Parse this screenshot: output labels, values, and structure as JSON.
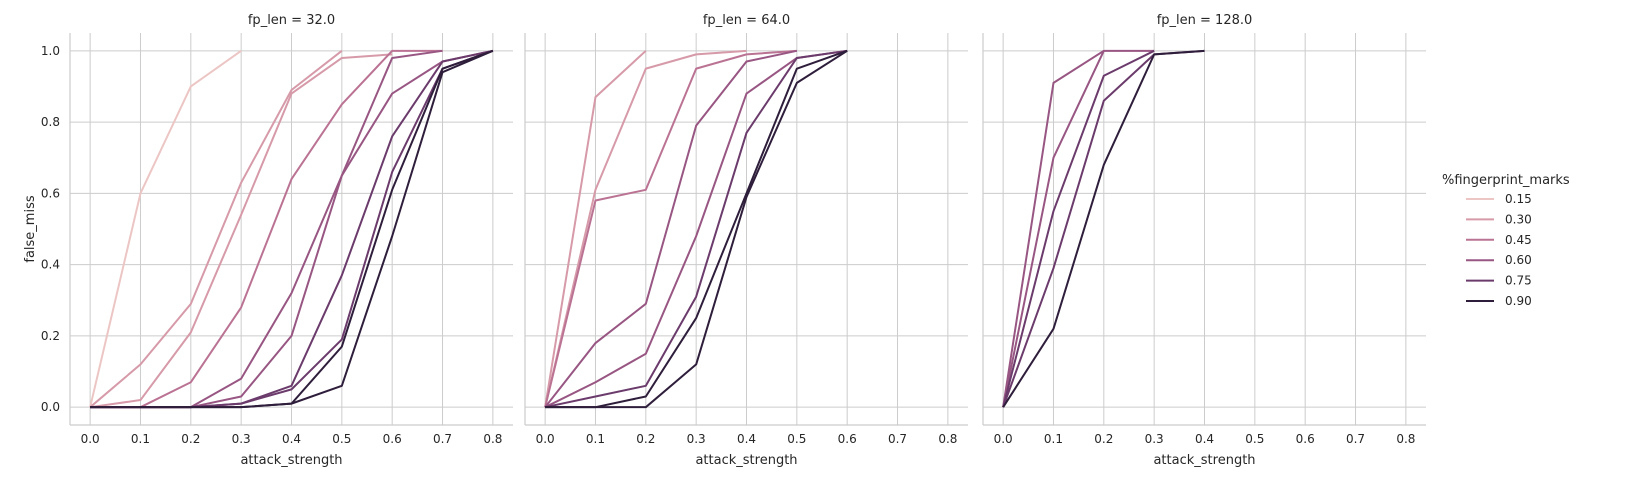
{
  "chart_data": {
    "type": "line",
    "xlabel": "attack_strength",
    "ylabel": "false_miss",
    "xlim": [
      -0.04,
      0.84
    ],
    "ylim": [
      -0.05,
      1.05
    ],
    "xticks": [
      "0.0",
      "0.1",
      "0.2",
      "0.3",
      "0.4",
      "0.5",
      "0.6",
      "0.7",
      "0.8"
    ],
    "yticks": [
      "0.0",
      "0.2",
      "0.4",
      "0.6",
      "0.8",
      "1.0"
    ],
    "grid": true,
    "legend": {
      "title": "%fingerprint_marks",
      "placement": "right",
      "entries": [
        {
          "label": "0.15",
          "color": "#ecc6c4"
        },
        {
          "label": "0.30",
          "color": "#d69aa9"
        },
        {
          "label": "0.45",
          "color": "#bb7394"
        },
        {
          "label": "0.60",
          "color": "#985683"
        },
        {
          "label": "0.75",
          "color": "#6b3b6c"
        },
        {
          "label": "0.90",
          "color": "#2e1e3b"
        }
      ]
    },
    "panels": [
      {
        "title": "fp_len = 32.0",
        "series": [
          {
            "name": "0.15",
            "x": [
              0.0,
              0.1,
              0.2,
              0.3
            ],
            "y": [
              0.0,
              0.6,
              0.9,
              1.0
            ]
          },
          {
            "name": "0.30",
            "x": [
              0.0,
              0.1,
              0.2,
              0.3,
              0.4,
              0.5
            ],
            "y": [
              0.0,
              0.12,
              0.29,
              0.63,
              0.89,
              1.0
            ]
          },
          {
            "name": "0.30",
            "x": [
              0.0,
              0.1,
              0.2,
              0.3,
              0.4,
              0.5,
              0.6
            ],
            "y": [
              0.0,
              0.02,
              0.21,
              0.54,
              0.88,
              0.98,
              0.99
            ]
          },
          {
            "name": "0.45",
            "x": [
              0.0,
              0.1,
              0.2,
              0.3,
              0.4,
              0.5,
              0.6,
              0.7
            ],
            "y": [
              0.0,
              0.0,
              0.07,
              0.28,
              0.64,
              0.85,
              1.0,
              1.0
            ]
          },
          {
            "name": "0.60",
            "x": [
              0.0,
              0.1,
              0.2,
              0.3,
              0.4,
              0.5,
              0.6,
              0.7
            ],
            "y": [
              0.0,
              0.0,
              0.0,
              0.08,
              0.32,
              0.65,
              0.98,
              1.0
            ]
          },
          {
            "name": "0.60",
            "x": [
              0.0,
              0.1,
              0.2,
              0.3,
              0.4,
              0.5,
              0.6,
              0.7,
              0.8
            ],
            "y": [
              0.0,
              0.0,
              0.0,
              0.03,
              0.2,
              0.65,
              0.88,
              0.97,
              1.0
            ]
          },
          {
            "name": "0.75",
            "x": [
              0.0,
              0.1,
              0.2,
              0.3,
              0.4,
              0.5,
              0.6,
              0.7,
              0.8
            ],
            "y": [
              0.0,
              0.0,
              0.0,
              0.01,
              0.06,
              0.37,
              0.76,
              0.97,
              1.0
            ]
          },
          {
            "name": "0.75",
            "x": [
              0.0,
              0.1,
              0.2,
              0.3,
              0.4,
              0.5,
              0.6,
              0.7,
              0.8
            ],
            "y": [
              0.0,
              0.0,
              0.0,
              0.01,
              0.05,
              0.19,
              0.66,
              0.95,
              1.0
            ]
          },
          {
            "name": "0.90",
            "x": [
              0.0,
              0.1,
              0.2,
              0.3,
              0.4,
              0.5,
              0.6,
              0.7,
              0.8
            ],
            "y": [
              0.0,
              0.0,
              0.0,
              0.0,
              0.01,
              0.17,
              0.61,
              0.95,
              1.0
            ]
          },
          {
            "name": "0.90",
            "x": [
              0.0,
              0.1,
              0.2,
              0.3,
              0.4,
              0.5,
              0.6,
              0.7,
              0.8
            ],
            "y": [
              0.0,
              0.0,
              0.0,
              0.0,
              0.01,
              0.06,
              0.48,
              0.94,
              1.0
            ]
          }
        ]
      },
      {
        "title": "fp_len = 64.0",
        "series": [
          {
            "name": "0.30",
            "x": [
              0.0,
              0.1,
              0.2
            ],
            "y": [
              0.0,
              0.87,
              1.0
            ]
          },
          {
            "name": "0.30",
            "x": [
              0.0,
              0.1,
              0.2,
              0.3,
              0.4
            ],
            "y": [
              0.0,
              0.61,
              0.95,
              0.99,
              1.0
            ]
          },
          {
            "name": "0.45",
            "x": [
              0.0,
              0.1,
              0.2,
              0.3,
              0.4,
              0.5
            ],
            "y": [
              0.0,
              0.58,
              0.61,
              0.95,
              0.99,
              1.0
            ]
          },
          {
            "name": "0.60",
            "x": [
              0.0,
              0.1,
              0.2,
              0.3,
              0.4,
              0.5
            ],
            "y": [
              0.0,
              0.18,
              0.29,
              0.79,
              0.97,
              1.0
            ]
          },
          {
            "name": "0.60",
            "x": [
              0.0,
              0.1,
              0.2,
              0.3,
              0.4,
              0.5,
              0.6
            ],
            "y": [
              0.0,
              0.07,
              0.15,
              0.48,
              0.88,
              0.98,
              1.0
            ]
          },
          {
            "name": "0.75",
            "x": [
              0.0,
              0.1,
              0.2,
              0.3,
              0.4,
              0.5,
              0.6
            ],
            "y": [
              0.0,
              0.03,
              0.06,
              0.31,
              0.77,
              0.98,
              1.0
            ]
          },
          {
            "name": "0.90",
            "x": [
              0.0,
              0.1,
              0.2,
              0.3,
              0.4,
              0.5,
              0.6
            ],
            "y": [
              0.0,
              0.0,
              0.03,
              0.25,
              0.6,
              0.95,
              1.0
            ]
          },
          {
            "name": "0.90",
            "x": [
              0.0,
              0.1,
              0.2,
              0.3,
              0.4,
              0.5,
              0.6
            ],
            "y": [
              0.0,
              0.0,
              0.0,
              0.12,
              0.59,
              0.91,
              1.0
            ]
          }
        ]
      },
      {
        "title": "fp_len = 128.0",
        "series": [
          {
            "name": "0.60",
            "x": [
              0.0,
              0.1,
              0.2
            ],
            "y": [
              0.0,
              0.91,
              1.0
            ]
          },
          {
            "name": "0.60",
            "x": [
              0.0,
              0.1,
              0.2,
              0.3
            ],
            "y": [
              0.0,
              0.7,
              1.0,
              1.0
            ]
          },
          {
            "name": "0.75",
            "x": [
              0.0,
              0.1,
              0.2,
              0.3
            ],
            "y": [
              0.0,
              0.55,
              0.93,
              1.0
            ]
          },
          {
            "name": "0.75",
            "x": [
              0.0,
              0.1,
              0.2,
              0.3,
              0.4
            ],
            "y": [
              0.0,
              0.39,
              0.86,
              0.99,
              1.0
            ]
          },
          {
            "name": "0.90",
            "x": [
              0.0,
              0.1,
              0.2,
              0.3,
              0.4
            ],
            "y": [
              0.0,
              0.22,
              0.68,
              0.99,
              1.0
            ]
          }
        ]
      }
    ]
  }
}
